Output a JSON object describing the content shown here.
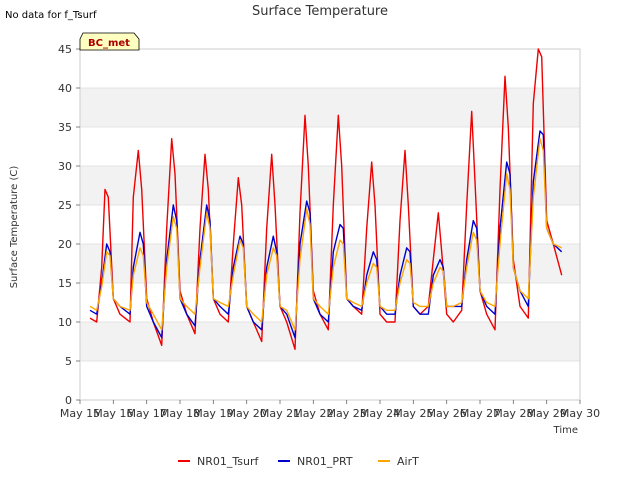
{
  "header": {
    "note": "No data for f_Tsurf"
  },
  "badge": {
    "label": "BC_met"
  },
  "chart_data": {
    "type": "line",
    "title": "Surface Temperature",
    "xlabel": "Time",
    "ylabel": "Surface Temperature (C)",
    "xlim": [
      15,
      30
    ],
    "ylim": [
      0,
      45
    ],
    "x_ticks": [
      15,
      16,
      17,
      18,
      19,
      20,
      21,
      22,
      23,
      24,
      25,
      26,
      27,
      28,
      29,
      30
    ],
    "x_tick_labels": [
      "May 15",
      "May 16",
      "May 17",
      "May 18",
      "May 19",
      "May 20",
      "May 21",
      "May 22",
      "May 23",
      "May 24",
      "May 25",
      "May 26",
      "May 27",
      "May 28",
      "May 29",
      "May 30"
    ],
    "y_ticks": [
      0,
      5,
      10,
      15,
      20,
      25,
      30,
      35,
      40,
      45
    ],
    "y_tick_labels": [
      "0",
      "5",
      "10",
      "15",
      "20",
      "25",
      "30",
      "35",
      "40",
      "45"
    ],
    "grid": "horizontal alternating bands",
    "legend_position": "bottom-center",
    "series": [
      {
        "name": "NR01_Tsurf",
        "color": "#ee0000",
        "x": [
          15.3,
          15.5,
          15.65,
          15.75,
          15.85,
          16.0,
          16.2,
          16.5,
          16.6,
          16.75,
          16.85,
          17.0,
          17.2,
          17.45,
          17.6,
          17.75,
          17.85,
          18.0,
          18.2,
          18.45,
          18.6,
          18.75,
          18.85,
          19.0,
          19.2,
          19.45,
          19.6,
          19.75,
          19.85,
          20.0,
          20.2,
          20.45,
          20.6,
          20.75,
          20.85,
          21.0,
          21.2,
          21.45,
          21.6,
          21.75,
          21.85,
          22.0,
          22.2,
          22.45,
          22.6,
          22.75,
          22.85,
          23.0,
          23.2,
          23.45,
          23.6,
          23.75,
          23.85,
          24.0,
          24.2,
          24.45,
          24.6,
          24.75,
          24.85,
          25.0,
          25.2,
          25.45,
          25.6,
          25.75,
          25.85,
          26.0,
          26.2,
          26.45,
          26.6,
          26.75,
          26.85,
          27.0,
          27.2,
          27.45,
          27.6,
          27.75,
          27.85,
          28.0,
          28.2,
          28.45,
          28.6,
          28.75,
          28.85,
          29.0,
          29.2,
          29.45
        ],
        "y": [
          10.5,
          10.0,
          17.0,
          27.0,
          26.0,
          13.0,
          11.0,
          10.0,
          26.0,
          32.0,
          27.0,
          13.0,
          10.0,
          7.0,
          22.0,
          33.5,
          29.0,
          14.0,
          11.0,
          8.5,
          22.0,
          31.5,
          27.0,
          13.0,
          11.0,
          10.0,
          20.0,
          28.5,
          25.0,
          12.0,
          10.0,
          7.5,
          22.0,
          31.5,
          25.0,
          12.0,
          10.0,
          6.5,
          24.0,
          36.5,
          30.0,
          14.0,
          11.0,
          9.0,
          25.0,
          36.5,
          30.0,
          13.0,
          12.0,
          11.0,
          22.0,
          30.5,
          25.0,
          11.0,
          10.0,
          10.0,
          23.0,
          32.0,
          25.0,
          12.0,
          11.0,
          12.0,
          18.0,
          24.0,
          19.0,
          11.0,
          10.0,
          11.5,
          25.0,
          37.0,
          28.0,
          14.0,
          11.0,
          9.0,
          27.0,
          41.5,
          35.0,
          18.0,
          12.0,
          10.5,
          38.0,
          45.0,
          44.0,
          23.0,
          20.0,
          16.0
        ]
      },
      {
        "name": "NR01_PRT",
        "color": "#0000cc",
        "x": [
          15.3,
          15.5,
          15.65,
          15.8,
          15.9,
          16.0,
          16.2,
          16.5,
          16.6,
          16.8,
          16.9,
          17.0,
          17.2,
          17.45,
          17.6,
          17.8,
          17.9,
          18.0,
          18.2,
          18.45,
          18.6,
          18.8,
          18.9,
          19.0,
          19.2,
          19.45,
          19.6,
          19.8,
          19.9,
          20.0,
          20.2,
          20.45,
          20.6,
          20.8,
          20.9,
          21.0,
          21.2,
          21.45,
          21.6,
          21.8,
          21.9,
          22.0,
          22.2,
          22.45,
          22.6,
          22.8,
          22.9,
          23.0,
          23.2,
          23.45,
          23.6,
          23.8,
          23.9,
          24.0,
          24.2,
          24.45,
          24.6,
          24.8,
          24.9,
          25.0,
          25.2,
          25.45,
          25.6,
          25.8,
          25.9,
          26.0,
          26.2,
          26.45,
          26.6,
          26.8,
          26.9,
          27.0,
          27.2,
          27.45,
          27.6,
          27.8,
          27.9,
          28.0,
          28.2,
          28.45,
          28.6,
          28.8,
          28.9,
          29.0,
          29.2,
          29.45
        ],
        "y": [
          11.5,
          11.0,
          15.0,
          20.0,
          19.0,
          13.0,
          12.0,
          11.0,
          17.0,
          21.5,
          20.0,
          12.0,
          10.0,
          8.0,
          18.0,
          25.0,
          23.0,
          13.0,
          11.0,
          9.5,
          18.0,
          25.0,
          23.0,
          13.0,
          12.0,
          11.0,
          17.0,
          21.0,
          20.0,
          12.0,
          10.0,
          9.0,
          17.0,
          21.0,
          19.0,
          12.0,
          11.0,
          8.0,
          20.0,
          25.5,
          24.0,
          13.0,
          11.0,
          10.0,
          19.0,
          22.5,
          22.0,
          13.0,
          12.0,
          11.5,
          16.0,
          19.0,
          18.0,
          12.0,
          11.0,
          11.0,
          16.0,
          19.5,
          19.0,
          12.0,
          11.0,
          11.0,
          16.0,
          18.0,
          17.0,
          12.0,
          12.0,
          12.0,
          18.0,
          23.0,
          22.0,
          14.0,
          12.0,
          11.0,
          22.0,
          30.5,
          29.0,
          17.0,
          14.0,
          12.0,
          28.0,
          34.5,
          34.0,
          22.0,
          20.0,
          19.0
        ]
      },
      {
        "name": "AirT",
        "color": "#ffa500",
        "x": [
          15.3,
          15.5,
          15.65,
          15.8,
          15.9,
          16.0,
          16.2,
          16.5,
          16.6,
          16.8,
          16.9,
          17.0,
          17.2,
          17.45,
          17.6,
          17.8,
          17.9,
          18.0,
          18.2,
          18.45,
          18.6,
          18.8,
          18.9,
          19.0,
          19.2,
          19.45,
          19.6,
          19.8,
          19.9,
          20.0,
          20.2,
          20.45,
          20.6,
          20.8,
          20.9,
          21.0,
          21.2,
          21.45,
          21.6,
          21.8,
          21.9,
          22.0,
          22.2,
          22.45,
          22.6,
          22.8,
          22.9,
          23.0,
          23.2,
          23.45,
          23.6,
          23.8,
          23.9,
          24.0,
          24.2,
          24.45,
          24.6,
          24.8,
          24.9,
          25.0,
          25.2,
          25.45,
          25.6,
          25.8,
          25.9,
          26.0,
          26.2,
          26.45,
          26.6,
          26.8,
          26.9,
          27.0,
          27.2,
          27.45,
          27.6,
          27.8,
          27.9,
          28.0,
          28.2,
          28.45,
          28.6,
          28.8,
          28.9,
          29.0,
          29.2,
          29.45
        ],
        "y": [
          12.0,
          11.5,
          14.5,
          19.0,
          18.5,
          13.0,
          12.0,
          11.5,
          16.0,
          19.5,
          18.5,
          12.5,
          11.0,
          9.0,
          17.0,
          23.5,
          22.0,
          13.0,
          12.0,
          11.0,
          17.0,
          24.0,
          22.0,
          13.0,
          12.5,
          12.0,
          16.0,
          20.5,
          19.5,
          12.0,
          11.0,
          10.0,
          16.0,
          19.5,
          18.5,
          12.0,
          11.5,
          9.0,
          18.0,
          24.5,
          22.5,
          13.0,
          12.0,
          11.0,
          17.0,
          20.5,
          20.0,
          13.0,
          12.5,
          12.0,
          15.0,
          17.5,
          17.0,
          12.0,
          11.5,
          11.5,
          15.0,
          18.0,
          17.5,
          12.5,
          12.0,
          12.0,
          15.0,
          17.0,
          16.5,
          12.0,
          12.0,
          12.5,
          17.0,
          21.5,
          20.5,
          14.0,
          12.5,
          12.0,
          20.0,
          29.0,
          27.0,
          17.0,
          14.0,
          13.0,
          26.0,
          33.5,
          32.0,
          22.0,
          20.0,
          19.5
        ]
      }
    ]
  }
}
